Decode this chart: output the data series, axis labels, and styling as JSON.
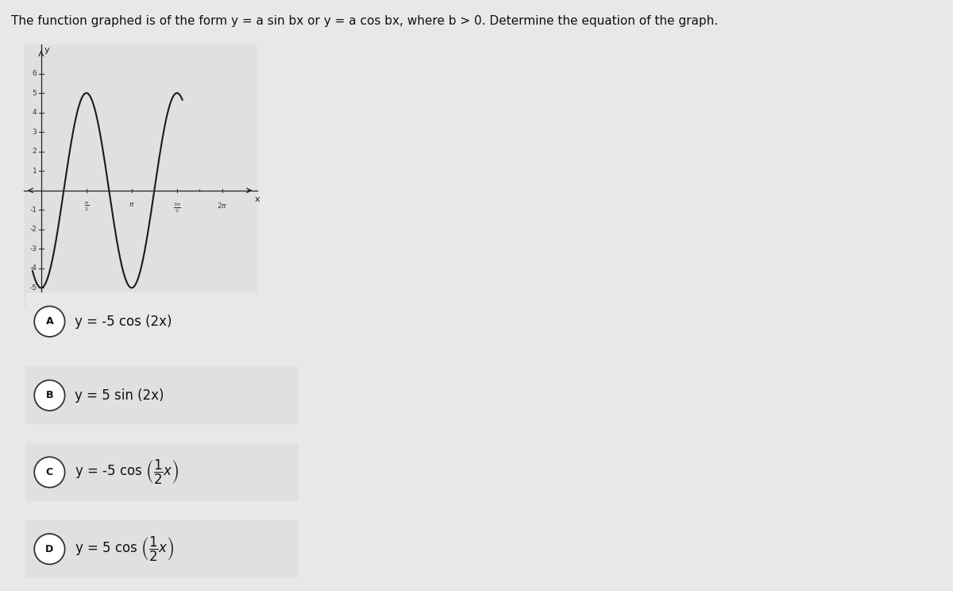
{
  "title": "The function graphed is of the form y = a sin bx or y = a cos bx, where b > 0. Determine the equation of the graph.",
  "bg_color": "#e8e8e8",
  "plot_bg_color": "#e0e0e0",
  "curve_color": "#1a1a1a",
  "curve_linewidth": 1.5,
  "amplitude": 5,
  "b_coeff": 2,
  "sign": -1,
  "func_type": "cos",
  "x_plot_start": -0.3,
  "x_plot_end": 4.9,
  "xlim_min": -0.6,
  "xlim_max": 7.5,
  "ylim_min": -6.0,
  "ylim_max": 7.5,
  "yticks": [
    -5,
    -4,
    -3,
    -2,
    -1,
    1,
    2,
    3,
    4,
    5,
    6
  ],
  "choices": [
    {
      "label": "A",
      "text_plain": "y = -5 cos (2x)"
    },
    {
      "label": "B",
      "text_plain": "y = 5 sin (2x)"
    },
    {
      "label": "C",
      "text_plain": "y = -5 cos (1/2 x)"
    },
    {
      "label": "D",
      "text_plain": "y = 5 cos (1/2 x)"
    }
  ],
  "choice_circle_color": "#ffffff",
  "choice_circle_edge_color": "#333333",
  "choice_text_color": "#111111",
  "choice_bg_colors": [
    "#e8e8e8",
    "#e0e0e0",
    "#e0e0e0",
    "#e0e0e0"
  ],
  "axis_color": "#222222",
  "tick_color": "#333333",
  "title_color": "#111111",
  "title_fontsize": 11
}
